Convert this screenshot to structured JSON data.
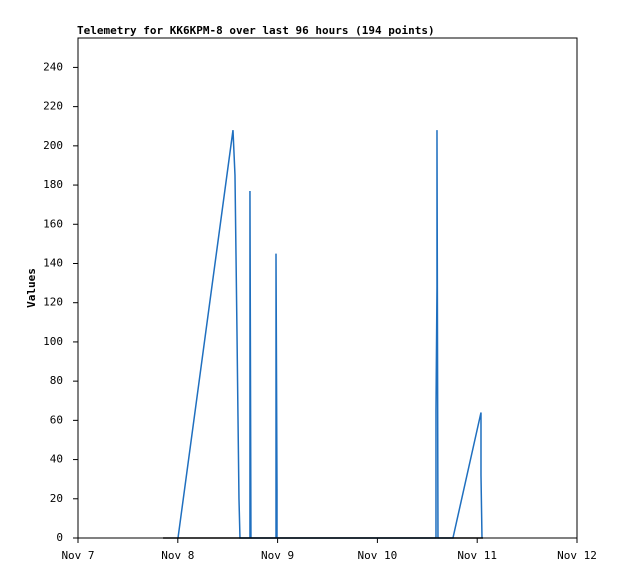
{
  "chart_data": {
    "type": "line",
    "title": "Telemetry for KK6KPM-8 over last 96 hours (194 points)",
    "y_label": "Values",
    "xlim": [
      7,
      12
    ],
    "xticks": [
      {
        "value": 7,
        "label": "Nov 7"
      },
      {
        "value": 8,
        "label": "Nov 8"
      },
      {
        "value": 9,
        "label": "Nov 9"
      },
      {
        "value": 10,
        "label": "Nov 10"
      },
      {
        "value": 11,
        "label": "Nov 11"
      },
      {
        "value": 12,
        "label": "Nov 12"
      }
    ],
    "ylim": [
      0,
      255
    ],
    "yticks": [
      0,
      20,
      40,
      60,
      80,
      100,
      120,
      140,
      160,
      180,
      200,
      220,
      240
    ],
    "series": [
      {
        "color": "#000000",
        "x": [
          7.852,
          11.058
        ],
        "values": [
          0,
          0
        ]
      },
      {
        "color": "#1f6fbf",
        "x": [
          8.002,
          8.553,
          8.573,
          8.583,
          8.593,
          8.603,
          8.613,
          8.623,
          8.723,
          8.723,
          8.733,
          8.984,
          8.984,
          8.994,
          8.994,
          10.587,
          10.587,
          10.597,
          10.597,
          10.607,
          10.757,
          11.038,
          11.038,
          11.048
        ],
        "values": [
          0,
          208,
          185,
          145,
          105,
          62,
          20,
          0,
          0,
          177,
          0,
          0,
          145,
          25,
          0,
          0,
          65,
          128,
          208,
          0,
          0,
          64,
          32,
          0
        ]
      }
    ]
  }
}
